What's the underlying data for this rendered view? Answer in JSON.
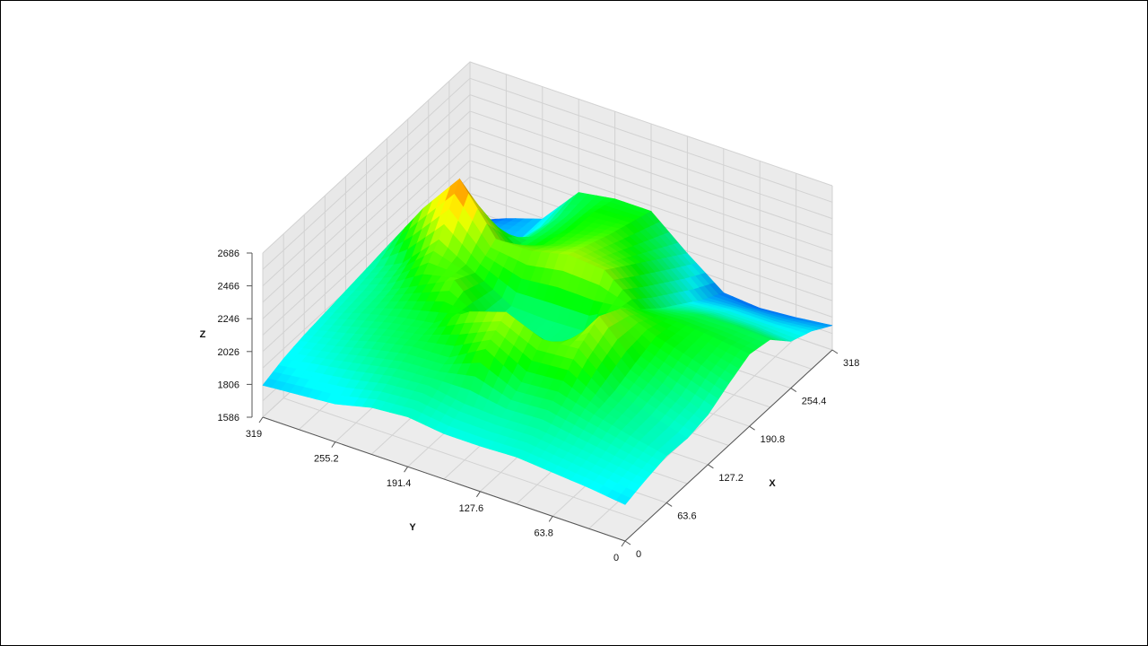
{
  "chart_data": {
    "type": "surface3d",
    "title": "",
    "x_axis": {
      "label": "X",
      "range": [
        0,
        318
      ],
      "ticks": [
        0,
        63.6,
        127.2,
        190.8,
        254.4,
        318
      ],
      "tick_labels": [
        "0",
        "63.6",
        "127.2",
        "190.8",
        "254.4",
        "318"
      ]
    },
    "y_axis": {
      "label": "Y",
      "range": [
        0,
        319
      ],
      "ticks": [
        0,
        63.8,
        127.6,
        191.4,
        255.2,
        319
      ],
      "tick_labels": [
        "0",
        "63.8",
        "127.6",
        "191.4",
        "255.2",
        "319"
      ]
    },
    "z_axis": {
      "label": "Z",
      "range": [
        1586,
        2686
      ],
      "ticks": [
        1586,
        1806,
        2026,
        2246,
        2466,
        2686
      ],
      "tick_labels": [
        "1586",
        "1806",
        "2026",
        "2246",
        "2466",
        "2686"
      ]
    },
    "grid": true,
    "colormap": [
      "#0000ff",
      "#00ffff",
      "#00ff00",
      "#ffff00",
      "#ff0000"
    ],
    "surface": {
      "x": [
        0,
        31.8,
        63.6,
        95.4,
        127.2,
        159,
        190.8,
        222.6,
        254.4,
        286.2,
        318
      ],
      "y": [
        0,
        31.9,
        63.8,
        95.7,
        127.6,
        159.5,
        191.4,
        223.3,
        255.2,
        287.1,
        319
      ],
      "z": [
        [
          1830,
          1870,
          1900,
          1890,
          1920,
          2000,
          2070,
          2040,
          1900,
          1840,
          1750
        ],
        [
          1860,
          1900,
          1950,
          1960,
          2000,
          2080,
          2100,
          2050,
          1920,
          1820,
          1720
        ],
        [
          1880,
          1930,
          2010,
          2040,
          2100,
          2150,
          2120,
          2040,
          1920,
          1820,
          1700
        ],
        [
          1900,
          1960,
          2080,
          2240,
          2330,
          2250,
          2120,
          2000,
          1900,
          1800,
          1720
        ],
        [
          1890,
          1950,
          2060,
          2220,
          2020,
          2020,
          2300,
          2200,
          2100,
          2000,
          1900
        ],
        [
          1890,
          1960,
          2200,
          2320,
          2010,
          2010,
          2320,
          2260,
          2200,
          2150,
          2100
        ],
        [
          1920,
          2000,
          2060,
          2240,
          2020,
          2020,
          2260,
          2180,
          2150,
          2140,
          2100
        ],
        [
          1900,
          1980,
          2050,
          2080,
          2240,
          2160,
          2260,
          2080,
          2040,
          2020,
          2060
        ],
        [
          1840,
          1930,
          2000,
          2040,
          2120,
          2300,
          2580,
          2250,
          1860,
          1800,
          1800
        ],
        [
          1820,
          1890,
          1930,
          1980,
          2000,
          2060,
          2300,
          2140,
          1900,
          1780,
          1720
        ],
        [
          1800,
          1850,
          1880,
          1900,
          1920,
          1940,
          1960,
          1940,
          1860,
          1720,
          1620
        ]
      ]
    }
  }
}
